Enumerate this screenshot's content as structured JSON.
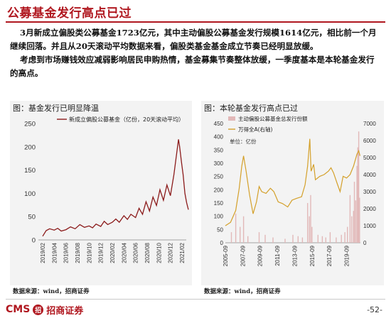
{
  "slide": {
    "title": "公募基金发行高点已过",
    "paragraph1": "3月新成立偏股类公募基金1723亿元，其中主动偏股公募基金发行规模1614亿元，相比前一个月继续回落。并且从20天滚动平均数据来看，偏股类基金基金成立节奏已经明显放缓。",
    "paragraph2": "考虑到市场赚钱效应减弱影响居民申购热情，基金募集节奏整体放缓，一季度基本是本轮基金发行的高点。",
    "source_left": "数据来源：wind，招商证券",
    "source_right": "数据来源：wind，招商证券",
    "page_number": "-52-",
    "logo_latin": "CMS",
    "logo_mark": "招",
    "logo_cn": "招商证券"
  },
  "colors": {
    "brand": "#b0171f",
    "line_red": "#8b1a1a",
    "line_gold": "#d4a02a",
    "bar_pink": "#e2b8b8"
  },
  "chart_data": [
    {
      "type": "line",
      "title": "图：基金发行已明显降温",
      "legend": [
        "新成立偏股公募基金（亿份，20天滚动平均）"
      ],
      "legend_position": "top",
      "ylim": [
        0,
        250
      ],
      "yticks": [
        0,
        50,
        100,
        150,
        200,
        250
      ],
      "xticks": [
        "2019/02",
        "2019/04",
        "2019/06",
        "2019/08",
        "2019/10",
        "2019/12",
        "2020/02",
        "2020/04",
        "2020/06",
        "2020/08",
        "2020/10",
        "2020/12",
        "2021/02"
      ],
      "series": [
        {
          "name": "新成立偏股公募基金（亿份，20天滚动平均）",
          "points": [
            [
              0,
              8
            ],
            [
              0.3,
              20
            ],
            [
              0.6,
              24
            ],
            [
              1,
              21
            ],
            [
              1.3,
              25
            ],
            [
              1.6,
              19
            ],
            [
              2,
              22
            ],
            [
              2.4,
              28
            ],
            [
              2.8,
              24
            ],
            [
              3.2,
              33
            ],
            [
              3.6,
              27
            ],
            [
              4,
              30
            ],
            [
              4.3,
              26
            ],
            [
              4.6,
              34
            ],
            [
              5,
              29
            ],
            [
              5.3,
              40
            ],
            [
              5.6,
              33
            ],
            [
              6,
              38
            ],
            [
              6.3,
              45
            ],
            [
              6.6,
              38
            ],
            [
              7,
              52
            ],
            [
              7.3,
              44
            ],
            [
              7.6,
              55
            ],
            [
              8,
              48
            ],
            [
              8.3,
              68
            ],
            [
              8.6,
              55
            ],
            [
              8.9,
              82
            ],
            [
              9.2,
              62
            ],
            [
              9.5,
              92
            ],
            [
              9.8,
              74
            ],
            [
              10.1,
              108
            ],
            [
              10.4,
              85
            ],
            [
              10.7,
              118
            ],
            [
              11,
              95
            ],
            [
              11.3,
              140
            ],
            [
              11.55,
              188
            ],
            [
              11.7,
              216
            ],
            [
              11.8,
              200
            ],
            [
              11.95,
              168
            ],
            [
              12.1,
              140
            ],
            [
              12.25,
              100
            ],
            [
              12.4,
              80
            ],
            [
              12.55,
              65
            ]
          ]
        }
      ]
    },
    {
      "type": "bar+line",
      "title": "图：本轮基金发行高点已过",
      "legend": [
        "主动偏股公募基金总发行份额",
        "万得全A(右轴)"
      ],
      "legend_position": "top-left",
      "unit_label": "单位：亿份",
      "ylim_left": [
        0,
        450
      ],
      "yticks_left": [
        0,
        50,
        100,
        150,
        200,
        250,
        300,
        350,
        400,
        450
      ],
      "ylim_right": [
        0,
        7000
      ],
      "yticks_right": [
        0,
        1000,
        2000,
        3000,
        4000,
        5000,
        6000,
        7000
      ],
      "xticks": [
        "2005-09",
        "2007-09",
        "2009-09",
        "2011-09",
        "2013-09",
        "2015-09",
        "2017-09",
        "2019-09"
      ],
      "series": [
        {
          "name": "万得全A(右轴)",
          "axis": "right",
          "points": [
            [
              2005.7,
              1000
            ],
            [
              2006.3,
              1200
            ],
            [
              2006.9,
              1900
            ],
            [
              2007.3,
              3200
            ],
            [
              2007.6,
              4500
            ],
            [
              2007.8,
              5100
            ],
            [
              2008.1,
              4200
            ],
            [
              2008.5,
              2800
            ],
            [
              2008.9,
              1700
            ],
            [
              2009.3,
              2400
            ],
            [
              2009.6,
              3300
            ],
            [
              2009.9,
              3000
            ],
            [
              2010.4,
              2900
            ],
            [
              2010.9,
              3200
            ],
            [
              2011.3,
              3000
            ],
            [
              2011.8,
              2400
            ],
            [
              2012.3,
              2300
            ],
            [
              2012.9,
              2100
            ],
            [
              2013.4,
              2500
            ],
            [
              2013.9,
              2600
            ],
            [
              2014.5,
              2700
            ],
            [
              2014.9,
              3400
            ],
            [
              2015.2,
              4500
            ],
            [
              2015.45,
              6100
            ],
            [
              2015.6,
              4200
            ],
            [
              2015.9,
              4600
            ],
            [
              2016.1,
              3700
            ],
            [
              2016.6,
              3900
            ],
            [
              2017.1,
              4000
            ],
            [
              2017.6,
              4200
            ],
            [
              2017.9,
              4400
            ],
            [
              2018.2,
              4100
            ],
            [
              2018.6,
              3500
            ],
            [
              2018.95,
              3000
            ],
            [
              2019.3,
              3900
            ],
            [
              2019.7,
              3800
            ],
            [
              2020.1,
              4000
            ],
            [
              2020.5,
              4500
            ],
            [
              2020.9,
              5200
            ],
            [
              2021.1,
              5400
            ],
            [
              2021.25,
              5100
            ]
          ]
        },
        {
          "name": "主动偏股公募基金总发行份额",
          "axis": "left",
          "bars": [
            [
              2006.4,
              40
            ],
            [
              2006.9,
              110
            ],
            [
              2007.4,
              60
            ],
            [
              2007.8,
              100
            ],
            [
              2008.3,
              25
            ],
            [
              2009.6,
              40
            ],
            [
              2010.3,
              30
            ],
            [
              2011.2,
              20
            ],
            [
              2012.6,
              15
            ],
            [
              2013.5,
              30
            ],
            [
              2014.1,
              25
            ],
            [
              2014.6,
              20
            ],
            [
              2015.2,
              150
            ],
            [
              2015.4,
              100
            ],
            [
              2015.55,
              180
            ],
            [
              2015.7,
              60
            ],
            [
              2016.4,
              30
            ],
            [
              2016.9,
              25
            ],
            [
              2017.3,
              20
            ],
            [
              2017.8,
              40
            ],
            [
              2018.5,
              20
            ],
            [
              2019.1,
              30
            ],
            [
              2019.5,
              40
            ],
            [
              2019.8,
              60
            ],
            [
              2020.1,
              180
            ],
            [
              2020.3,
              100
            ],
            [
              2020.5,
              120
            ],
            [
              2020.6,
              230
            ],
            [
              2020.75,
              160
            ],
            [
              2020.9,
              290
            ],
            [
              2021.0,
              360
            ],
            [
              2021.1,
              420
            ],
            [
              2021.2,
              170
            ]
          ]
        }
      ]
    }
  ]
}
